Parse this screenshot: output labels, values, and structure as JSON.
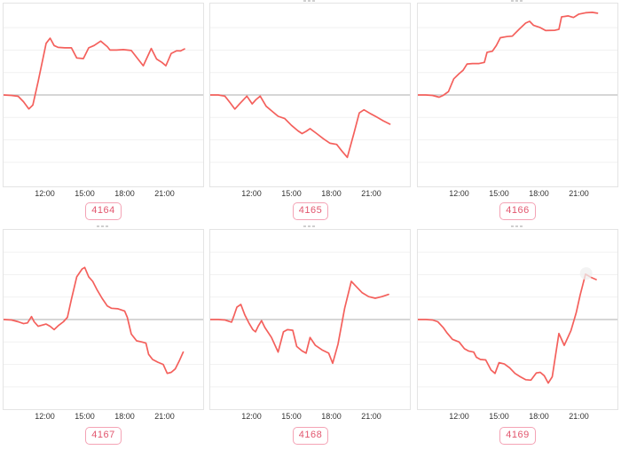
{
  "colors": {
    "line": "#f4605c",
    "zero_line": "#bdbdbd",
    "gridline": "#f1f1f1",
    "box_border": "#e4e4e4",
    "tick_text": "#333333",
    "badge_text": "#e2566e",
    "badge_border": "#f4a3b5",
    "marker_halo": "#efefef"
  },
  "x_axis": {
    "ticks": [
      {
        "hour": 12,
        "label": "12:00"
      },
      {
        "hour": 15,
        "label": "15:00"
      },
      {
        "hour": 18,
        "label": "18:00"
      },
      {
        "hour": 21,
        "label": "21:00"
      }
    ]
  },
  "chart_data": {
    "type": "line",
    "title": "",
    "xlabel": "",
    "ylabel": "",
    "x_unit": "time-of-day (decimal hours)",
    "y_unit": "gridline units (no y tick labels shown; zero line at 0)",
    "x_range": [
      8.9,
      23.9
    ],
    "y_range": [
      -4.07,
      4.07
    ],
    "grid": "horizontal-only",
    "legend": "none",
    "charts": [
      {
        "id": "4164",
        "fragment_top": false,
        "points": [
          [
            8.9,
            0
          ],
          [
            9.5,
            -0.02
          ],
          [
            10,
            -0.06
          ],
          [
            10.4,
            -0.3
          ],
          [
            10.8,
            -0.62
          ],
          [
            11.1,
            -0.45
          ],
          [
            11.5,
            0.6
          ],
          [
            12.1,
            2.3
          ],
          [
            12.4,
            2.53
          ],
          [
            12.7,
            2.2
          ],
          [
            13,
            2.12
          ],
          [
            13.5,
            2.1
          ],
          [
            14,
            2.1
          ],
          [
            14.4,
            1.65
          ],
          [
            14.9,
            1.62
          ],
          [
            15.3,
            2.1
          ],
          [
            15.7,
            2.2
          ],
          [
            16.2,
            2.4
          ],
          [
            16.7,
            2.15
          ],
          [
            16.9,
            2.0
          ],
          [
            17.4,
            2.0
          ],
          [
            17.9,
            2.02
          ],
          [
            18.5,
            1.98
          ],
          [
            19,
            1.6
          ],
          [
            19.4,
            1.3
          ],
          [
            20,
            2.07
          ],
          [
            20.4,
            1.6
          ],
          [
            20.8,
            1.45
          ],
          [
            21.1,
            1.3
          ],
          [
            21.5,
            1.85
          ],
          [
            21.9,
            1.97
          ],
          [
            22.2,
            1.96
          ],
          [
            22.5,
            2.05
          ]
        ]
      },
      {
        "id": "4165",
        "fragment_top": true,
        "points": [
          [
            8.9,
            0
          ],
          [
            9.5,
            0
          ],
          [
            10,
            -0.05
          ],
          [
            10.4,
            -0.35
          ],
          [
            10.75,
            -0.63
          ],
          [
            11.1,
            -0.4
          ],
          [
            11.65,
            -0.05
          ],
          [
            12.05,
            -0.4
          ],
          [
            12.35,
            -0.2
          ],
          [
            12.65,
            -0.05
          ],
          [
            13.1,
            -0.5
          ],
          [
            13.6,
            -0.75
          ],
          [
            14,
            -0.95
          ],
          [
            14.5,
            -1.05
          ],
          [
            15,
            -1.35
          ],
          [
            15.5,
            -1.6
          ],
          [
            15.8,
            -1.72
          ],
          [
            16.1,
            -1.62
          ],
          [
            16.4,
            -1.5
          ],
          [
            16.9,
            -1.72
          ],
          [
            17.4,
            -1.95
          ],
          [
            17.9,
            -2.15
          ],
          [
            18.4,
            -2.2
          ],
          [
            18.8,
            -2.5
          ],
          [
            19.2,
            -2.78
          ],
          [
            19.7,
            -1.7
          ],
          [
            20.1,
            -0.8
          ],
          [
            20.45,
            -0.66
          ],
          [
            20.9,
            -0.82
          ],
          [
            21.4,
            -0.98
          ],
          [
            21.9,
            -1.15
          ],
          [
            22.4,
            -1.3
          ]
        ]
      },
      {
        "id": "4166",
        "fragment_top": true,
        "points": [
          [
            8.9,
            0
          ],
          [
            9.5,
            0
          ],
          [
            10,
            -0.02
          ],
          [
            10.5,
            -0.1
          ],
          [
            10.8,
            -0.02
          ],
          [
            11.2,
            0.15
          ],
          [
            11.6,
            0.72
          ],
          [
            12,
            0.95
          ],
          [
            12.3,
            1.1
          ],
          [
            12.6,
            1.38
          ],
          [
            13,
            1.4
          ],
          [
            13.5,
            1.4
          ],
          [
            13.9,
            1.45
          ],
          [
            14.1,
            1.9
          ],
          [
            14.5,
            1.95
          ],
          [
            14.8,
            2.2
          ],
          [
            15.1,
            2.55
          ],
          [
            15.6,
            2.6
          ],
          [
            16,
            2.62
          ],
          [
            16.5,
            2.92
          ],
          [
            17,
            3.2
          ],
          [
            17.3,
            3.28
          ],
          [
            17.6,
            3.1
          ],
          [
            18.1,
            3.0
          ],
          [
            18.5,
            2.87
          ],
          [
            19.2,
            2.88
          ],
          [
            19.5,
            2.92
          ],
          [
            19.7,
            3.48
          ],
          [
            20.2,
            3.52
          ],
          [
            20.6,
            3.45
          ],
          [
            21,
            3.6
          ],
          [
            21.5,
            3.66
          ],
          [
            22,
            3.68
          ],
          [
            22.4,
            3.64
          ]
        ]
      },
      {
        "id": "4167",
        "fragment_top": true,
        "points": [
          [
            8.9,
            0
          ],
          [
            9.5,
            -0.02
          ],
          [
            10,
            -0.1
          ],
          [
            10.4,
            -0.18
          ],
          [
            10.7,
            -0.15
          ],
          [
            11,
            0.13
          ],
          [
            11.2,
            -0.1
          ],
          [
            11.5,
            -0.3
          ],
          [
            11.8,
            -0.25
          ],
          [
            12.1,
            -0.2
          ],
          [
            12.4,
            -0.3
          ],
          [
            12.7,
            -0.45
          ],
          [
            13,
            -0.28
          ],
          [
            13.4,
            -0.1
          ],
          [
            13.7,
            0.1
          ],
          [
            14,
            0.9
          ],
          [
            14.4,
            1.9
          ],
          [
            14.8,
            2.25
          ],
          [
            15,
            2.32
          ],
          [
            15.3,
            1.9
          ],
          [
            15.6,
            1.7
          ],
          [
            15.9,
            1.35
          ],
          [
            16.3,
            0.95
          ],
          [
            16.7,
            0.6
          ],
          [
            17,
            0.5
          ],
          [
            17.5,
            0.48
          ],
          [
            18,
            0.38
          ],
          [
            18.2,
            0.1
          ],
          [
            18.5,
            -0.65
          ],
          [
            18.9,
            -0.95
          ],
          [
            19.3,
            -1.0
          ],
          [
            19.6,
            -1.05
          ],
          [
            19.8,
            -1.55
          ],
          [
            20.1,
            -1.78
          ],
          [
            20.5,
            -1.9
          ],
          [
            20.9,
            -2.0
          ],
          [
            21.2,
            -2.4
          ],
          [
            21.5,
            -2.35
          ],
          [
            21.8,
            -2.2
          ],
          [
            22.1,
            -1.85
          ],
          [
            22.4,
            -1.45
          ]
        ]
      },
      {
        "id": "4168",
        "fragment_top": true,
        "points": [
          [
            8.9,
            0
          ],
          [
            9.5,
            0
          ],
          [
            10,
            -0.02
          ],
          [
            10.5,
            -0.12
          ],
          [
            10.7,
            0.2
          ],
          [
            10.9,
            0.55
          ],
          [
            11.2,
            0.67
          ],
          [
            11.5,
            0.2
          ],
          [
            11.8,
            -0.15
          ],
          [
            12.1,
            -0.45
          ],
          [
            12.3,
            -0.55
          ],
          [
            12.5,
            -0.3
          ],
          [
            12.75,
            -0.05
          ],
          [
            13,
            -0.35
          ],
          [
            13.5,
            -0.8
          ],
          [
            14,
            -1.45
          ],
          [
            14.4,
            -0.55
          ],
          [
            14.7,
            -0.45
          ],
          [
            15.1,
            -0.48
          ],
          [
            15.4,
            -1.2
          ],
          [
            15.8,
            -1.4
          ],
          [
            16.1,
            -1.5
          ],
          [
            16.4,
            -0.8
          ],
          [
            16.8,
            -1.15
          ],
          [
            17.3,
            -1.35
          ],
          [
            17.8,
            -1.5
          ],
          [
            18.1,
            -1.95
          ],
          [
            18.5,
            -1.1
          ],
          [
            19,
            0.5
          ],
          [
            19.5,
            1.7
          ],
          [
            19.9,
            1.45
          ],
          [
            20.3,
            1.2
          ],
          [
            20.8,
            1.02
          ],
          [
            21.3,
            0.95
          ],
          [
            21.8,
            1.02
          ],
          [
            22.3,
            1.12
          ]
        ]
      },
      {
        "id": "4169",
        "fragment_top": true,
        "marker": {
          "x": 21.55,
          "y": 2.05,
          "r": 7
        },
        "points": [
          [
            8.9,
            0
          ],
          [
            9.5,
            0
          ],
          [
            10,
            -0.02
          ],
          [
            10.4,
            -0.1
          ],
          [
            10.8,
            -0.35
          ],
          [
            11.1,
            -0.6
          ],
          [
            11.5,
            -0.88
          ],
          [
            12,
            -1.0
          ],
          [
            12.4,
            -1.3
          ],
          [
            12.7,
            -1.4
          ],
          [
            13.1,
            -1.45
          ],
          [
            13.3,
            -1.68
          ],
          [
            13.6,
            -1.78
          ],
          [
            14,
            -1.8
          ],
          [
            14.4,
            -2.25
          ],
          [
            14.7,
            -2.4
          ],
          [
            15,
            -1.92
          ],
          [
            15.4,
            -1.98
          ],
          [
            15.8,
            -2.15
          ],
          [
            16.2,
            -2.4
          ],
          [
            16.6,
            -2.55
          ],
          [
            17,
            -2.68
          ],
          [
            17.4,
            -2.7
          ],
          [
            17.8,
            -2.38
          ],
          [
            18.1,
            -2.35
          ],
          [
            18.4,
            -2.5
          ],
          [
            18.7,
            -2.83
          ],
          [
            19,
            -2.55
          ],
          [
            19.5,
            -0.62
          ],
          [
            19.9,
            -1.15
          ],
          [
            20.4,
            -0.5
          ],
          [
            20.8,
            0.3
          ],
          [
            21.1,
            1.1
          ],
          [
            21.5,
            2.02
          ],
          [
            21.9,
            1.88
          ],
          [
            22.3,
            1.78
          ]
        ]
      }
    ]
  }
}
